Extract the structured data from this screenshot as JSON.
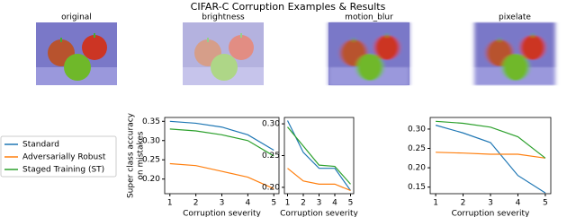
{
  "title": "CIFAR-C Corruption Examples & Results",
  "images": [
    "original",
    "brightness",
    "motion_blur",
    "pixelate"
  ],
  "chart_data": [
    {
      "type": "line",
      "xlabel": "Corruption severity",
      "ylabel": [
        "Super class accuracy",
        "on mistakes"
      ],
      "x": [
        1,
        2,
        3,
        4,
        5
      ],
      "xlim": [
        0.8,
        5.2
      ],
      "xticks": [
        1,
        2,
        3,
        4,
        5
      ],
      "ylim": [
        0.162,
        0.36
      ],
      "yticks": [
        {
          "value": 0.2,
          "label": "0.20"
        },
        0.25,
        {
          "value": 0.3,
          "label": "0.30"
        },
        0.35
      ],
      "series": [
        {
          "name": "Standard",
          "color": "#1f77b4",
          "values": [
            0.35,
            0.345,
            0.335,
            0.315,
            0.275
          ]
        },
        {
          "name": "Adversarially Robust",
          "color": "#ff7f0e",
          "values": [
            0.24,
            0.235,
            0.22,
            0.205,
            0.175
          ]
        },
        {
          "name": "Staged Training (ST)",
          "color": "#2ca02c",
          "values": [
            0.33,
            0.325,
            0.315,
            0.3,
            0.26
          ]
        }
      ]
    },
    {
      "type": "line",
      "xlabel": "Corruption severity",
      "x": [
        1,
        2,
        3,
        4,
        5
      ],
      "xlim": [
        0.8,
        5.2
      ],
      "xticks": [
        1,
        2,
        3,
        4,
        5
      ],
      "ylim": [
        0.19,
        0.31
      ],
      "yticks": [
        {
          "value": 0.2,
          "label": "0.20"
        },
        0.25,
        {
          "value": 0.3,
          "label": "0.30"
        }
      ],
      "series": [
        {
          "name": "Standard",
          "color": "#1f77b4",
          "values": [
            0.305,
            0.255,
            0.23,
            0.23,
            0.195
          ]
        },
        {
          "name": "Adversarially Robust",
          "color": "#ff7f0e",
          "values": [
            0.23,
            0.21,
            0.205,
            0.205,
            0.195
          ]
        },
        {
          "name": "Staged Training (ST)",
          "color": "#2ca02c",
          "values": [
            0.295,
            0.265,
            0.235,
            0.233,
            0.205
          ]
        }
      ]
    },
    {
      "type": "line",
      "xlabel": "Corruption severity",
      "x": [
        1,
        2,
        3,
        4,
        5
      ],
      "xlim": [
        0.8,
        5.2
      ],
      "xticks": [
        1,
        2,
        3,
        4,
        5
      ],
      "ylim": [
        0.133,
        0.33
      ],
      "yticks": [
        0.15,
        {
          "value": 0.2,
          "label": "0.20"
        },
        0.25,
        {
          "value": 0.3,
          "label": "0.30"
        }
      ],
      "series": [
        {
          "name": "Standard",
          "color": "#1f77b4",
          "values": [
            0.31,
            0.29,
            0.265,
            0.18,
            0.135
          ]
        },
        {
          "name": "Adversarially Robust",
          "color": "#ff7f0e",
          "values": [
            0.24,
            0.238,
            0.235,
            0.235,
            0.225
          ]
        },
        {
          "name": "Staged Training (ST)",
          "color": "#2ca02c",
          "values": [
            0.32,
            0.315,
            0.305,
            0.28,
            0.225
          ]
        }
      ]
    }
  ]
}
